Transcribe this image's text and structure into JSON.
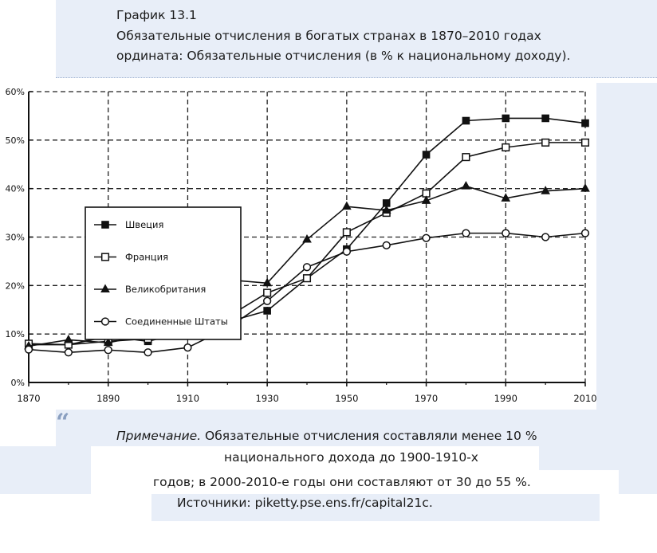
{
  "header": {
    "line1": "График 13.1",
    "line2": "Обязательные отчисления в богатых странах в 1870–2010 годах",
    "line3": "ордината: Обязательные отчисления (в % к национальному доходу)."
  },
  "quote_glyph": "“",
  "note": {
    "label": "Примечание.",
    "line1_rest": " Обязательные отчисления составляли менее 10 %",
    "line2": "национального дохода до 1900-1910-х",
    "line3": "годов; в 2000-2010-е годы они составляют от 30 до 55 %.",
    "line4": "Источники: piketty.pse.ens.fr/capital21c."
  },
  "chart_data": {
    "type": "line",
    "x": [
      1870,
      1880,
      1890,
      1900,
      1910,
      1920,
      1930,
      1940,
      1950,
      1960,
      1970,
      1980,
      1990,
      2000,
      2010
    ],
    "xticks": [
      "1870",
      "1890",
      "1910",
      "1930",
      "1950",
      "1970",
      "1990",
      "2010"
    ],
    "xtick_values": [
      1870,
      1890,
      1910,
      1930,
      1950,
      1970,
      1990,
      2010
    ],
    "xlim": [
      1870,
      2010
    ],
    "ylim": [
      0,
      60
    ],
    "yticks": [
      "0%",
      "10%",
      "20%",
      "30%",
      "40%",
      "50%",
      "60%"
    ],
    "ytick_values": [
      0,
      10,
      20,
      30,
      40,
      50,
      60
    ],
    "grid": true,
    "legend_position": "top-left",
    "series": [
      {
        "name": "Швеция",
        "marker": "square-filled",
        "values": [
          7.8,
          7.8,
          9.5,
          8.5,
          10.5,
          12.5,
          14.8,
          21.5,
          27.5,
          37,
          47,
          54,
          54.5,
          54.5,
          53.5
        ]
      },
      {
        "name": "Франция",
        "marker": "square-open",
        "values": [
          8,
          7.8,
          8.5,
          9,
          10.5,
          13.5,
          18.5,
          21.5,
          31,
          35,
          39,
          46.5,
          48.5,
          49.5,
          49.5
        ]
      },
      {
        "name": "Великобритания",
        "marker": "triangle-filled",
        "values": [
          7.5,
          8.8,
          8.2,
          9.8,
          10.8,
          21.2,
          20.5,
          29.5,
          36.3,
          35.5,
          37.5,
          40.5,
          38,
          39.5,
          40
        ]
      },
      {
        "name": "Соединенные Штаты",
        "marker": "circle-open",
        "values": [
          6.8,
          6.2,
          6.7,
          6.2,
          7.2,
          11.2,
          16.8,
          23.8,
          27,
          28.3,
          29.8,
          30.8,
          30.8,
          30,
          30.8
        ]
      }
    ]
  }
}
